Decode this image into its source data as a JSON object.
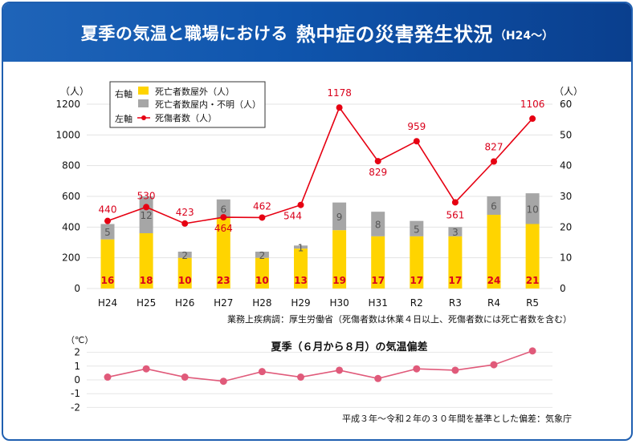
{
  "header": {
    "title_part1": "夏季の気温と職場における",
    "title_part2": "熱中症の災害発生状況",
    "title_part3": "（H24〜）"
  },
  "chart_data": [
    {
      "type": "bar",
      "categories": [
        "H24",
        "H25",
        "H26",
        "H27",
        "H28",
        "H29",
        "H30",
        "H31",
        "R2",
        "R3",
        "R4",
        "R5"
      ],
      "series": [
        {
          "name": "死亡者数屋外（人）",
          "values": [
            16,
            18,
            10,
            23,
            10,
            13,
            19,
            17,
            17,
            17,
            24,
            21
          ],
          "color": "#ffd400",
          "axis": "right"
        },
        {
          "name": "死亡者数屋内・不明（人）",
          "values": [
            5,
            12,
            2,
            6,
            2,
            1,
            9,
            8,
            5,
            3,
            6,
            10
          ],
          "color": "#a6a6a6",
          "axis": "right"
        },
        {
          "name": "死傷者数（人）",
          "values": [
            440,
            530,
            423,
            464,
            462,
            544,
            1178,
            829,
            959,
            561,
            827,
            1106
          ],
          "color": "#e60012",
          "axis": "left",
          "chart": "line"
        }
      ],
      "left_axis": {
        "unit": "（人）",
        "ylim": [
          0,
          1200
        ],
        "ticks": [
          "0",
          "200",
          "400",
          "600",
          "800",
          "1000",
          "1200"
        ]
      },
      "right_axis": {
        "unit": "（人）",
        "ylim": [
          0,
          60
        ],
        "ticks": [
          "0",
          "10",
          "20",
          "30",
          "40",
          "50",
          "60"
        ]
      },
      "legend": {
        "right_axis_label": "右軸",
        "left_axis_label": "左軸",
        "placement": "top-left"
      },
      "source_note": "業務上疾病調：厚生労働省（死傷者数は休業４日以上、死傷者数には死亡者数を含む）"
    },
    {
      "type": "line",
      "title": "夏季（６月から８月）の気温偏差",
      "categories": [
        "H24",
        "H25",
        "H26",
        "H27",
        "H28",
        "H29",
        "H30",
        "H31",
        "R2",
        "R3",
        "R4",
        "R5"
      ],
      "series": [
        {
          "values": [
            0.2,
            0.8,
            0.2,
            -0.1,
            0.6,
            0.2,
            0.7,
            0.1,
            0.8,
            0.7,
            1.1,
            2.1
          ],
          "color": "#e05a7a"
        }
      ],
      "y_unit": "（℃）",
      "ylim": [
        -2,
        2
      ],
      "ticks": [
        "-2",
        "-1",
        "0",
        "1",
        "2"
      ],
      "source_note": "平成３年〜令和２年の３０年間を基準とした偏差：気象庁"
    }
  ]
}
